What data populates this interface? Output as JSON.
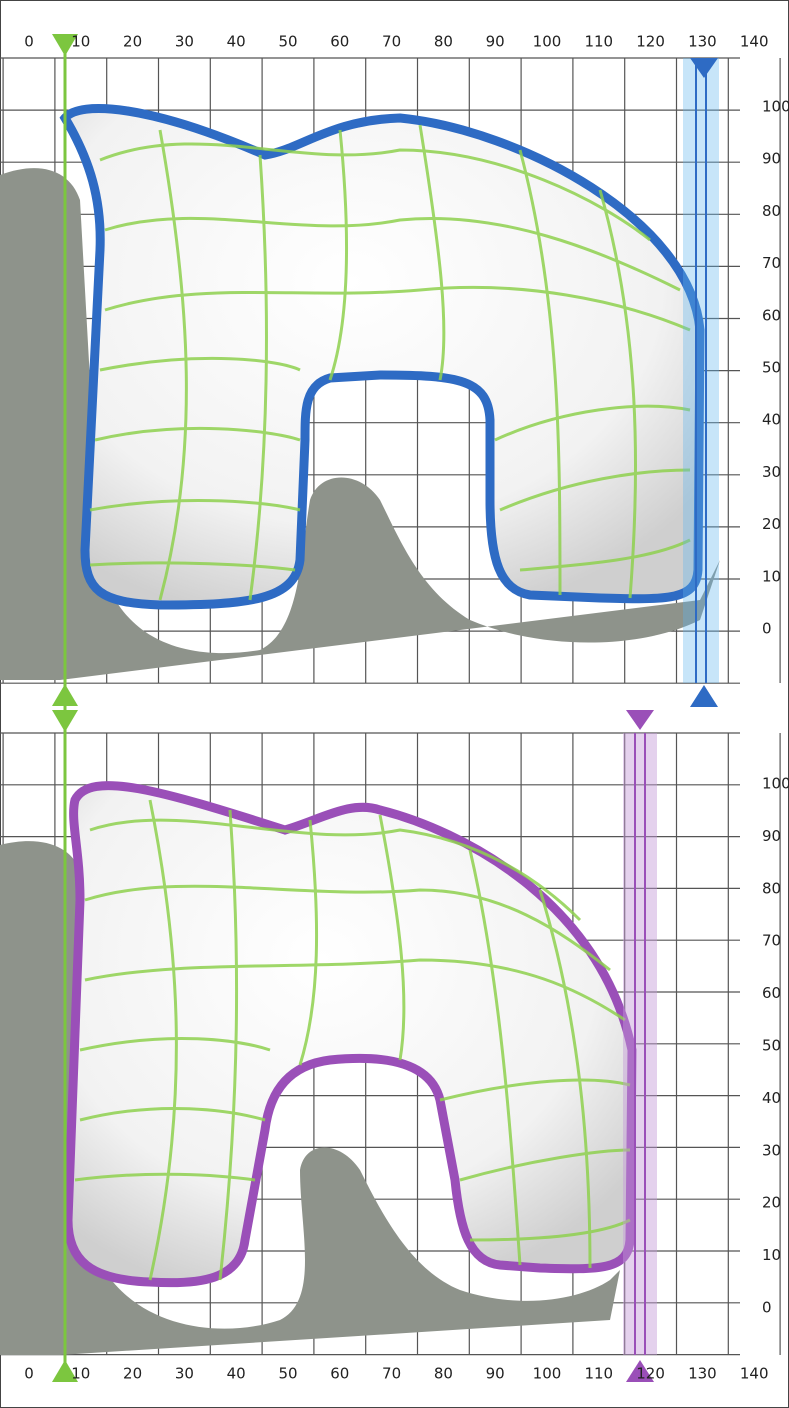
{
  "top_axis": {
    "labels": [
      0,
      10,
      20,
      30,
      40,
      50,
      60,
      70,
      80,
      90,
      100,
      110,
      120,
      130,
      140
    ]
  },
  "bottom_axis": {
    "labels": [
      0,
      10,
      20,
      30,
      40,
      50,
      60,
      70,
      80,
      90,
      100,
      110,
      120,
      130,
      140
    ]
  },
  "upper_panel": {
    "y_labels": [
      100,
      90,
      80,
      70,
      60,
      50,
      40,
      30,
      20,
      10,
      0
    ]
  },
  "lower_panel": {
    "y_labels": [
      100,
      90,
      80,
      70,
      60,
      50,
      40,
      30,
      20,
      10,
      0
    ]
  }
}
